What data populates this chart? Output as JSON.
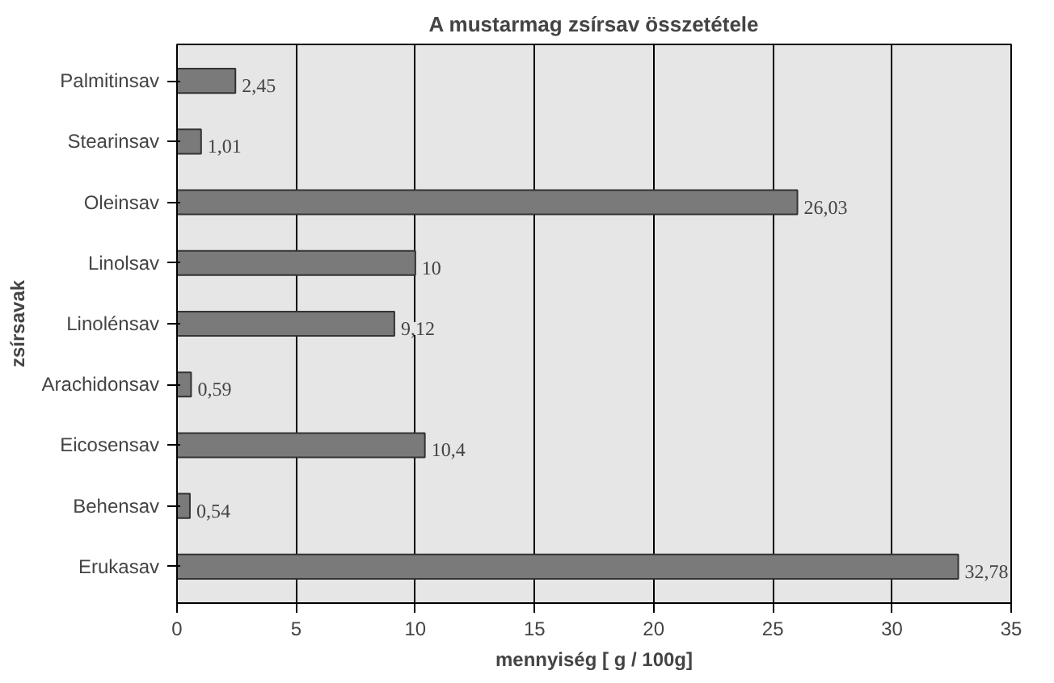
{
  "chart_data": {
    "type": "bar",
    "orientation": "horizontal",
    "title": "A mustarmag zsírsav összetétele",
    "xlabel": "mennyiség [ g / 100g]",
    "ylabel": "zsírsavak",
    "categories": [
      "Palmitinsav",
      "Stearinsav",
      "Oleinsav",
      "Linolsav",
      "Linolénsav",
      "Arachidonsav",
      "Eicosensav",
      "Behensav",
      "Erukasav"
    ],
    "values": [
      2.45,
      1.01,
      26.03,
      10,
      9.12,
      0.59,
      10.4,
      0.54,
      32.78
    ],
    "value_labels": [
      "2,45",
      "1,01",
      "26,03",
      "10",
      "9,12",
      "0,59",
      "10,4",
      "0,54",
      "32,78"
    ],
    "color": "#7a7a7a",
    "xlim": [
      0,
      35
    ],
    "xticks": [
      0,
      5,
      10,
      15,
      20,
      25,
      30,
      35
    ],
    "grid": "x"
  }
}
